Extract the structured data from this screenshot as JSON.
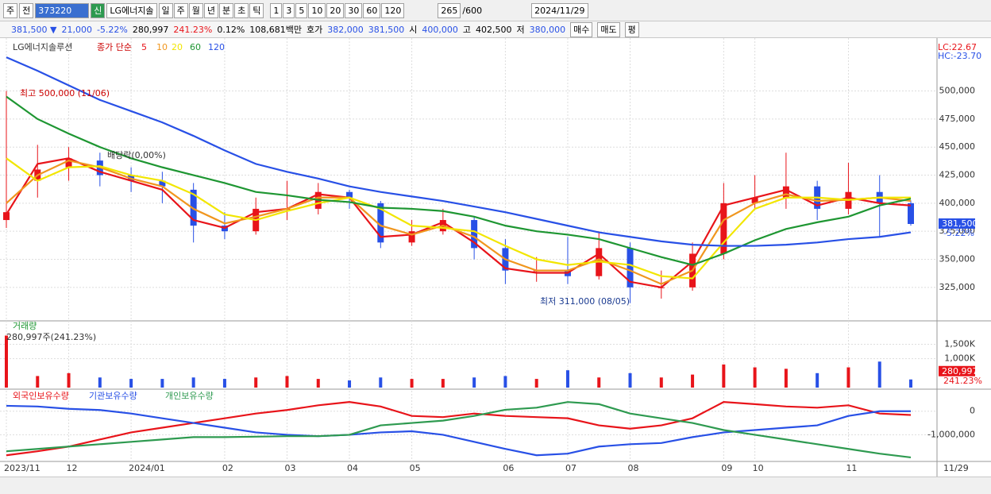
{
  "toolbar": {
    "market": "주",
    "mode": "전",
    "code": "373220",
    "badge": "신",
    "name": "LG에너지솔",
    "periods": [
      "일",
      "주",
      "월",
      "년",
      "분",
      "초",
      "틱"
    ],
    "intervals": [
      "1",
      "3",
      "5",
      "10",
      "20",
      "30",
      "60",
      "120"
    ],
    "count": "265",
    "max": "/600",
    "date": "2024/11/29"
  },
  "quote": {
    "price": "381,500 ▼",
    "change": "21,000",
    "rate": "-5.22%",
    "volume": "280,997",
    "volume_rate": "241.23%",
    "turnover": "0.12%",
    "amount": "108,681백만",
    "ask_label": "호가",
    "ask": "382,000",
    "bid": "381,500",
    "open_label": "시",
    "open": "400,000",
    "high_label": "고",
    "high": "402,500",
    "low_label": "저",
    "low": "380,000",
    "buy": "매수",
    "sell": "매도",
    "eval": "평"
  },
  "chart_data": [
    {
      "type": "candlestick",
      "title": "LG에너지솔루션",
      "legend_prefix": "종가 단순",
      "categories": [
        "2023/11",
        null,
        "12",
        null,
        "2024/01",
        null,
        null,
        "02",
        null,
        "03",
        null,
        "04",
        null,
        "05",
        null,
        null,
        "06",
        null,
        "07",
        null,
        "08",
        null,
        null,
        "09",
        "10",
        null,
        null,
        "11",
        null,
        null
      ],
      "open": [
        385000,
        420000,
        432000,
        438000,
        425000,
        420000,
        412000,
        380000,
        375000,
        395000,
        395000,
        410000,
        400000,
        365000,
        375000,
        385000,
        360000,
        340000,
        340000,
        335000,
        360000,
        325000,
        325000,
        355000,
        400000,
        405000,
        415000,
        395000,
        410000,
        400000
      ],
      "high": [
        500000,
        452000,
        450000,
        445000,
        432000,
        428000,
        418000,
        392000,
        405000,
        420000,
        418000,
        412000,
        402000,
        385000,
        395000,
        388000,
        368000,
        352000,
        370000,
        375000,
        365000,
        340000,
        365000,
        418000,
        425000,
        445000,
        420000,
        436000,
        425000,
        402500
      ],
      "low": [
        378000,
        405000,
        420000,
        415000,
        410000,
        400000,
        365000,
        368000,
        372000,
        385000,
        390000,
        395000,
        360000,
        362000,
        372000,
        350000,
        328000,
        330000,
        328000,
        332000,
        311000,
        315000,
        322000,
        350000,
        395000,
        395000,
        385000,
        390000,
        370000,
        380000
      ],
      "close": [
        392000,
        430000,
        440000,
        425000,
        420000,
        415000,
        380000,
        375000,
        395000,
        395000,
        410000,
        405000,
        365000,
        375000,
        385000,
        360000,
        340000,
        340000,
        335000,
        360000,
        325000,
        325000,
        355000,
        400000,
        405000,
        415000,
        395000,
        410000,
        400000,
        381500
      ],
      "up_color": "#e8141a",
      "down_color": "#2850e6",
      "series": [
        {
          "name": "5",
          "color": "#e8141a",
          "values": [
            390000,
            435000,
            440000,
            428000,
            420000,
            412000,
            385000,
            378000,
            392000,
            395000,
            408000,
            405000,
            370000,
            372000,
            383000,
            365000,
            342000,
            338000,
            338000,
            355000,
            330000,
            325000,
            348000,
            398000,
            405000,
            412000,
            398000,
            405000,
            400000,
            398000
          ]
        },
        {
          "name": "10",
          "color": "#f0961e",
          "values": [
            400000,
            425000,
            438000,
            432000,
            422000,
            415000,
            395000,
            382000,
            388000,
            395000,
            405000,
            405000,
            380000,
            372000,
            380000,
            370000,
            350000,
            340000,
            340000,
            350000,
            340000,
            328000,
            340000,
            385000,
            400000,
            408000,
            402000,
            403000,
            405000,
            402000
          ]
        },
        {
          "name": "20",
          "color": "#f2e600",
          "values": [
            440000,
            420000,
            432000,
            433000,
            425000,
            420000,
            408000,
            390000,
            385000,
            393000,
            400000,
            405000,
            395000,
            380000,
            378000,
            375000,
            362000,
            350000,
            345000,
            348000,
            345000,
            335000,
            333000,
            365000,
            395000,
            405000,
            405000,
            403000,
            405000,
            405000
          ]
        },
        {
          "name": "60",
          "color": "#1e9632",
          "values": [
            495000,
            475000,
            462000,
            450000,
            440000,
            432000,
            425000,
            418000,
            410000,
            407000,
            403000,
            401000,
            396000,
            395000,
            393000,
            388000,
            380000,
            375000,
            372000,
            368000,
            360000,
            352000,
            345000,
            355000,
            367000,
            377000,
            383000,
            388000,
            398000,
            404000
          ]
        },
        {
          "name": "120",
          "color": "#2850e6",
          "values": [
            530000,
            518000,
            505000,
            492000,
            482000,
            472000,
            460000,
            447000,
            435000,
            428000,
            422000,
            415000,
            410000,
            406000,
            402000,
            397000,
            392000,
            386000,
            380000,
            374000,
            370000,
            366000,
            363000,
            362000,
            362000,
            363000,
            365000,
            368000,
            370000,
            374000
          ]
        }
      ],
      "ylim": [
        298000,
        540000
      ],
      "yticks": [
        {
          "value": 325000,
          "label": "325,000"
        },
        {
          "value": 350000,
          "label": "350,000"
        },
        {
          "value": 375000,
          "label": "375,000"
        },
        {
          "value": 400000,
          "label": "400,000"
        },
        {
          "value": 425000,
          "label": "425,000"
        },
        {
          "value": 450000,
          "label": "450,000"
        },
        {
          "value": 475000,
          "label": "475,000"
        },
        {
          "value": 500000,
          "label": "500,000"
        }
      ],
      "high_note": "최고 500,000 (11/06)",
      "low_note": "최저 311,000 (08/05)",
      "dividend_note": "배당락(0,00%)",
      "lc": "LC:22.67",
      "hc": "HC:-23.70",
      "last_label": "381,500",
      "last_change": "-5.22%",
      "last_date": "11/29"
    },
    {
      "type": "bar",
      "title": "거래량",
      "subtitle": "280,997주(241.23%)",
      "values": [
        1800000,
        400000,
        500000,
        350000,
        300000,
        300000,
        350000,
        300000,
        350000,
        400000,
        300000,
        250000,
        350000,
        300000,
        300000,
        350000,
        400000,
        300000,
        600000,
        350000,
        500000,
        350000,
        450000,
        800000,
        700000,
        650000,
        500000,
        700000,
        900000,
        280997
      ],
      "ylim": [
        0,
        2200000
      ],
      "yticks": [
        {
          "value": 1000000,
          "label": "1,000K"
        },
        {
          "value": 1500000,
          "label": "1,500K"
        }
      ],
      "last_label": "280,997",
      "last_change": "241.23%"
    },
    {
      "type": "line",
      "series": [
        {
          "name": "외국인보유수량",
          "color": "#e8141a",
          "values": [
            -1870000,
            -1700000,
            -1500000,
            -1200000,
            -900000,
            -700000,
            -500000,
            -300000,
            -100000,
            50000,
            250000,
            390000,
            200000,
            -200000,
            -250000,
            -100000,
            -200000,
            -250000,
            -300000,
            -600000,
            -740000,
            -600000,
            -300000,
            390000,
            300000,
            200000,
            150000,
            250000,
            -100000,
            -160000
          ]
        },
        {
          "name": "기관보유수량",
          "color": "#2850e6",
          "values": [
            230000,
            200000,
            100000,
            50000,
            -100000,
            -300000,
            -500000,
            -700000,
            -900000,
            -1000000,
            -1060000,
            -1000000,
            -900000,
            -850000,
            -1000000,
            -1300000,
            -1600000,
            -1870000,
            -1800000,
            -1500000,
            -1400000,
            -1350000,
            -1100000,
            -900000,
            -800000,
            -700000,
            -600000,
            -200000,
            0,
            0
          ]
        },
        {
          "name": "개인보유수량",
          "color": "#2e9a50",
          "values": [
            -1700000,
            -1600000,
            -1500000,
            -1400000,
            -1300000,
            -1200000,
            -1100000,
            -1100000,
            -1080000,
            -1060000,
            -1060000,
            -1000000,
            -600000,
            -500000,
            -400000,
            -200000,
            60000,
            150000,
            390000,
            300000,
            -100000,
            -300000,
            -500000,
            -800000,
            -1000000,
            -1200000,
            -1400000,
            -1600000,
            -1800000,
            -1960000
          ]
        }
      ],
      "ylim": [
        -2030000,
        800000
      ],
      "yticks": [
        {
          "value": -1000000,
          "label": "-1,000,000"
        },
        0
      ]
    }
  ]
}
